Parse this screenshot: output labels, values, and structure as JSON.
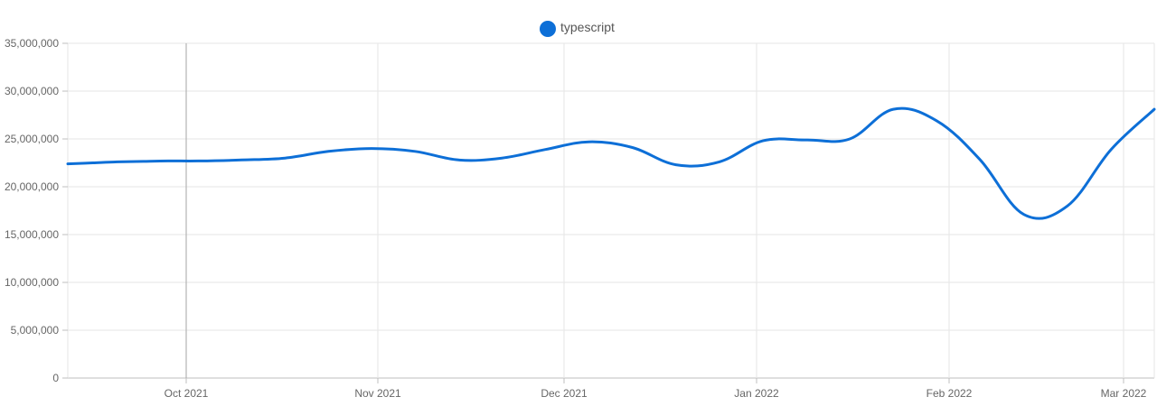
{
  "chart_data": {
    "type": "line",
    "title": "",
    "xlabel": "",
    "ylabel": "",
    "legend": {
      "placement": "top-center"
    },
    "grid": true,
    "ylim": [
      0,
      35000000
    ],
    "xlim": [
      "2021-08-29",
      "2022-03-06"
    ],
    "y_ticks": [
      {
        "value": 0,
        "label": "0"
      },
      {
        "value": 5000000,
        "label": "5,000,000"
      },
      {
        "value": 10000000,
        "label": "10,000,000"
      },
      {
        "value": 15000000,
        "label": "15,000,000"
      },
      {
        "value": 20000000,
        "label": "20,000,000"
      },
      {
        "value": 25000000,
        "label": "25,000,000"
      },
      {
        "value": 30000000,
        "label": "30,000,000"
      },
      {
        "value": 35000000,
        "label": "35,000,000"
      }
    ],
    "x_ticks": [
      {
        "date": "2021-10-01",
        "label": "Oct 2021"
      },
      {
        "date": "2021-11-01",
        "label": "Nov 2021"
      },
      {
        "date": "2021-12-01",
        "label": "Dec 2021"
      },
      {
        "date": "2022-01-01",
        "label": "Jan 2022"
      },
      {
        "date": "2022-02-01",
        "label": "Feb 2022"
      },
      {
        "date": "2022-03-01",
        "label": "Mar 2022"
      }
    ],
    "series": [
      {
        "name": "typescript",
        "color": "#0d6fd7",
        "points": [
          {
            "x": "2021-08-29",
            "y": 22400000
          },
          {
            "x": "2021-09-05",
            "y": 22500000
          },
          {
            "x": "2021-09-12",
            "y": 22600000
          },
          {
            "x": "2021-09-19",
            "y": 22650000
          },
          {
            "x": "2021-09-26",
            "y": 22700000
          },
          {
            "x": "2021-10-03",
            "y": 22700000
          },
          {
            "x": "2021-10-10",
            "y": 22800000
          },
          {
            "x": "2021-10-17",
            "y": 23000000
          },
          {
            "x": "2021-10-24",
            "y": 23700000
          },
          {
            "x": "2021-10-31",
            "y": 24000000
          },
          {
            "x": "2021-11-07",
            "y": 23700000
          },
          {
            "x": "2021-11-14",
            "y": 22800000
          },
          {
            "x": "2021-11-21",
            "y": 23000000
          },
          {
            "x": "2021-11-28",
            "y": 23900000
          },
          {
            "x": "2021-12-05",
            "y": 24700000
          },
          {
            "x": "2021-12-12",
            "y": 24100000
          },
          {
            "x": "2021-12-19",
            "y": 22300000
          },
          {
            "x": "2021-12-26",
            "y": 22600000
          },
          {
            "x": "2022-01-02",
            "y": 24800000
          },
          {
            "x": "2022-01-09",
            "y": 24900000
          },
          {
            "x": "2022-01-16",
            "y": 25000000
          },
          {
            "x": "2022-01-23",
            "y": 28100000
          },
          {
            "x": "2022-01-30",
            "y": 26900000
          },
          {
            "x": "2022-02-06",
            "y": 22800000
          },
          {
            "x": "2022-02-13",
            "y": 17100000
          },
          {
            "x": "2022-02-20",
            "y": 18000000
          },
          {
            "x": "2022-02-27",
            "y": 23900000
          },
          {
            "x": "2022-03-06",
            "y": 28100000
          }
        ]
      }
    ]
  }
}
